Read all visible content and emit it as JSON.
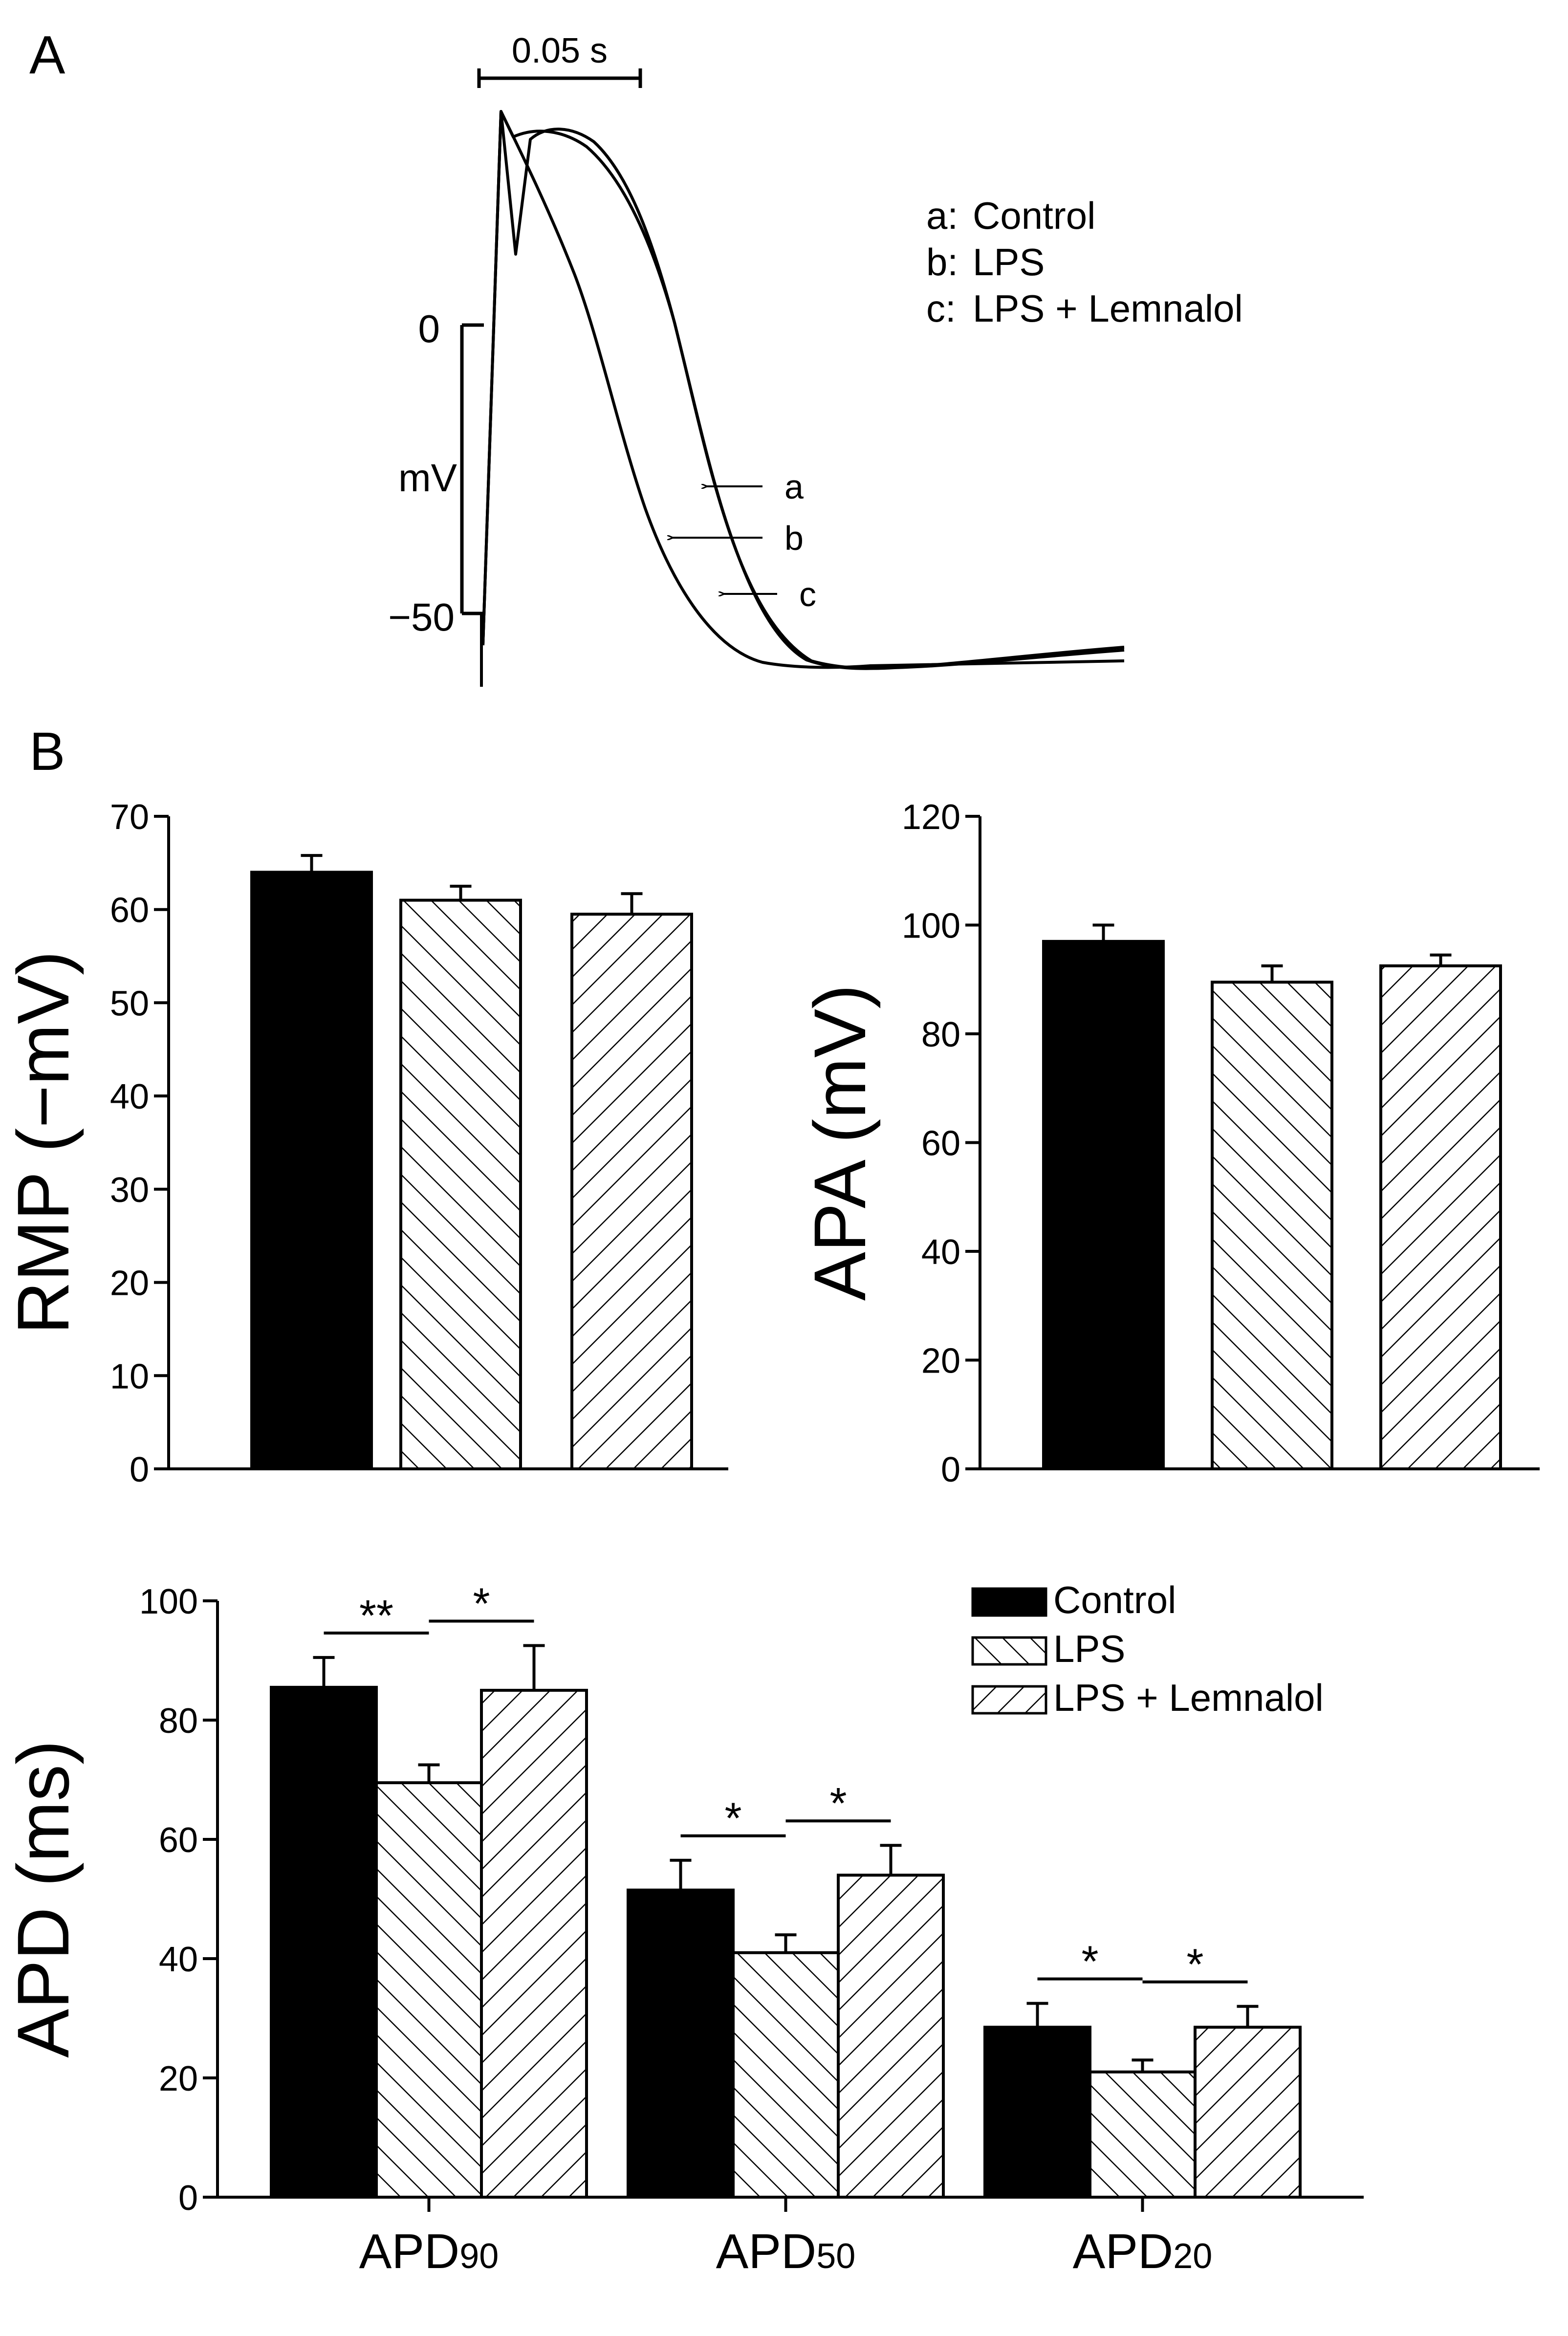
{
  "panels": {
    "a": "A",
    "b": "B"
  },
  "trace_panel": {
    "time_scale_label": "0.05 s",
    "voltage_unit": "mV",
    "voltage_ticks": [
      "0",
      "−50"
    ],
    "legend": [
      {
        "key": "a:",
        "label": "Control"
      },
      {
        "key": "b:",
        "label": "LPS"
      },
      {
        "key": "c:",
        "label": "LPS + Lemnalol"
      }
    ],
    "arrow_labels": [
      "a",
      "b",
      "c"
    ]
  },
  "colors": {
    "control": "#000000",
    "lps_hatch": "#000000",
    "lemnalol_hatch": "#000000"
  },
  "chart_data": [
    {
      "type": "bar",
      "id": "rmp",
      "ylabel": "RMP (−mV)",
      "ylim": [
        0,
        70
      ],
      "yticks": [
        0,
        10,
        20,
        30,
        40,
        50,
        60,
        70
      ],
      "categories": [
        "Control",
        "LPS",
        "LPS + Lemnalol"
      ],
      "values": [
        64,
        61,
        59.5
      ],
      "errors": [
        1.8,
        1.5,
        2.2
      ]
    },
    {
      "type": "bar",
      "id": "apa",
      "ylabel": "APA (mV)",
      "ylim": [
        0,
        120
      ],
      "yticks": [
        0,
        20,
        40,
        60,
        80,
        100,
        120
      ],
      "categories": [
        "Control",
        "LPS",
        "LPS + Lemnalol"
      ],
      "values": [
        97,
        89.5,
        92.5
      ],
      "errors": [
        3,
        3,
        2
      ]
    },
    {
      "type": "bar",
      "id": "apd",
      "ylabel": "APD (ms)",
      "ylim": [
        0,
        100
      ],
      "yticks": [
        0,
        20,
        40,
        60,
        80,
        100
      ],
      "groups": [
        {
          "label_main": "APD",
          "label_sub": "90",
          "values": [
            85.5,
            69.5,
            85
          ],
          "errors": [
            5,
            3,
            7.5
          ],
          "sig": [
            "**",
            "*"
          ]
        },
        {
          "label_main": "APD",
          "label_sub": "50",
          "values": [
            51.5,
            41,
            54
          ],
          "errors": [
            5,
            3,
            5
          ],
          "sig": [
            "*",
            "*"
          ]
        },
        {
          "label_main": "APD",
          "label_sub": "20",
          "values": [
            28.5,
            21,
            28.5
          ],
          "errors": [
            4,
            2,
            3.5
          ],
          "sig": [
            "*",
            "*"
          ]
        }
      ],
      "series": [
        "Control",
        "LPS",
        "LPS + Lemnalol"
      ],
      "legend": [
        {
          "name": "Control"
        },
        {
          "name": "LPS"
        },
        {
          "name": "LPS + Lemnalol"
        }
      ]
    }
  ]
}
